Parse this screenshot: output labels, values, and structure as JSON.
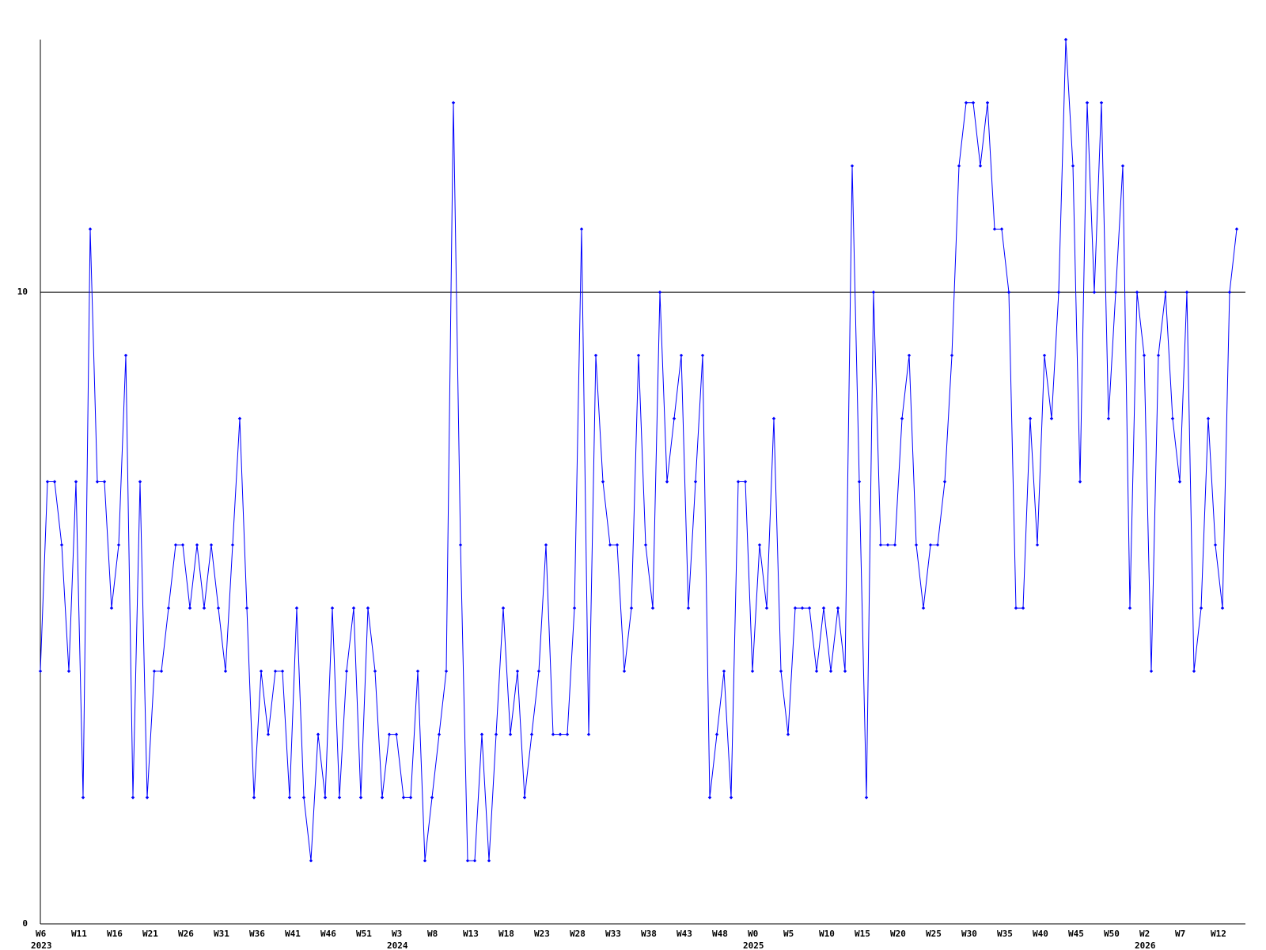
{
  "chart_data": {
    "type": "line",
    "color": "#0000ff",
    "ylim": [
      0,
      14
    ],
    "yticks": [
      0,
      10
    ],
    "grid": true,
    "categories": [
      "W6",
      null,
      null,
      null,
      null,
      "W11",
      null,
      null,
      null,
      null,
      "W16",
      null,
      null,
      null,
      null,
      "W21",
      null,
      null,
      null,
      null,
      "W26",
      null,
      null,
      null,
      null,
      "W31",
      null,
      null,
      null,
      null,
      "W36",
      null,
      null,
      null,
      null,
      "W41",
      null,
      null,
      null,
      null,
      "W46",
      null,
      null,
      null,
      null,
      "W51",
      null,
      null,
      null,
      null,
      "W3",
      null,
      null,
      null,
      null,
      "W8",
      null,
      null,
      null,
      null,
      "W13",
      null,
      null,
      null,
      null,
      "W18",
      null,
      null,
      null,
      null,
      "W23",
      null,
      null,
      null,
      null,
      "W28",
      null,
      null,
      null,
      null,
      "W33",
      null,
      null,
      null,
      null,
      "W38",
      null,
      null,
      null,
      null,
      "W43",
      null,
      null,
      null,
      null,
      "W48",
      null,
      null,
      null,
      null,
      "W0",
      null,
      null,
      null,
      null,
      "W5",
      null,
      null,
      null,
      null,
      "W10",
      null,
      null,
      null,
      null,
      "W15",
      null,
      null,
      null,
      null,
      "W20",
      null,
      null,
      null,
      null,
      "W25",
      null,
      null,
      null,
      null,
      "W30",
      null,
      null,
      null,
      null,
      "W35",
      null,
      null,
      null,
      null,
      "W40",
      null,
      null,
      null,
      null,
      "W45",
      null,
      null,
      null,
      null,
      "W50",
      null,
      null,
      null,
      null,
      "W2",
      null,
      null,
      null,
      null,
      "W7",
      null,
      null,
      null,
      null,
      "W12",
      null,
      null,
      null
    ],
    "year_labels": [
      "2023",
      null,
      null,
      null,
      null,
      null,
      null,
      null,
      null,
      null,
      null,
      null,
      null,
      null,
      null,
      null,
      null,
      null,
      null,
      null,
      null,
      null,
      null,
      null,
      null,
      null,
      null,
      null,
      null,
      null,
      null,
      null,
      null,
      null,
      null,
      null,
      null,
      null,
      null,
      null,
      null,
      null,
      null,
      null,
      null,
      null,
      null,
      null,
      null,
      null,
      "2024",
      null,
      null,
      null,
      null,
      null,
      null,
      null,
      null,
      null,
      null,
      null,
      null,
      null,
      null,
      null,
      null,
      null,
      null,
      null,
      null,
      null,
      null,
      null,
      null,
      null,
      null,
      null,
      null,
      null,
      null,
      null,
      null,
      null,
      null,
      null,
      null,
      null,
      null,
      null,
      null,
      null,
      null,
      null,
      null,
      null,
      null,
      null,
      null,
      null,
      "2025",
      null,
      null,
      null,
      null,
      null,
      null,
      null,
      null,
      null,
      null,
      null,
      null,
      null,
      null,
      null,
      null,
      null,
      null,
      null,
      null,
      null,
      null,
      null,
      null,
      null,
      null,
      null,
      null,
      null,
      null,
      null,
      null,
      null,
      null,
      null,
      null,
      null,
      null,
      null,
      null,
      null,
      null,
      null,
      null,
      null,
      null,
      null,
      null,
      null,
      null,
      null,
      null,
      null,
      null,
      "2026",
      null,
      null,
      null,
      null,
      null,
      null,
      null,
      null,
      null,
      null,
      null,
      null,
      null
    ],
    "values": [
      4,
      7,
      7,
      6,
      4,
      7,
      2,
      11,
      7,
      7,
      5,
      6,
      9,
      2,
      7,
      2,
      4,
      4,
      5,
      6,
      6,
      5,
      6,
      5,
      6,
      5,
      4,
      6,
      8,
      5,
      2,
      4,
      3,
      4,
      4,
      2,
      5,
      2,
      1,
      3,
      2,
      5,
      2,
      4,
      5,
      2,
      5,
      4,
      2,
      3,
      3,
      2,
      2,
      4,
      1,
      2,
      3,
      4,
      13,
      6,
      1,
      1,
      3,
      1,
      3,
      5,
      3,
      4,
      2,
      3,
      4,
      6,
      3,
      3,
      3,
      5,
      11,
      3,
      9,
      7,
      6,
      6,
      4,
      5,
      9,
      6,
      5,
      10,
      7,
      8,
      9,
      5,
      7,
      9,
      2,
      3,
      4,
      2,
      7,
      7,
      4,
      6,
      5,
      8,
      4,
      3,
      5,
      5,
      5,
      4,
      5,
      4,
      5,
      4,
      12,
      7,
      2,
      10,
      6,
      6,
      6,
      8,
      9,
      6,
      5,
      6,
      6,
      7,
      9,
      12,
      13,
      13,
      12,
      13,
      11,
      11,
      10,
      5,
      5,
      8,
      6,
      9,
      8,
      10,
      14,
      12,
      7,
      13,
      10,
      13,
      8,
      10,
      12,
      5,
      10,
      9,
      4,
      9,
      10,
      8,
      7,
      10,
      4,
      5,
      8,
      6,
      5,
      10,
      11
    ]
  }
}
